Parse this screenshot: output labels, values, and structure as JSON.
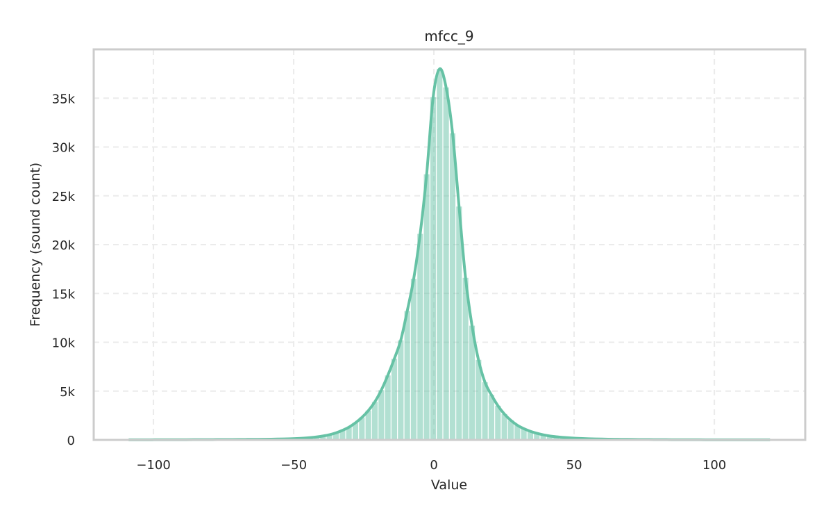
{
  "chart_data": {
    "type": "bar",
    "title": "mfcc_9",
    "xlabel": "Value",
    "ylabel": "Frequency (sound count)",
    "xlim": [
      -121.3,
      132.4
    ],
    "ylim": [
      0,
      40000
    ],
    "grid": true,
    "bin_range": [
      -110,
      121
    ],
    "x_ticks": [
      -100,
      -50,
      0,
      50,
      100
    ],
    "x_tick_labels": [
      "−100",
      "−50",
      "0",
      "50",
      "100"
    ],
    "y_ticks": [
      0,
      5000,
      10000,
      15000,
      20000,
      25000,
      30000,
      35000
    ],
    "y_tick_labels": [
      "0",
      "5k",
      "10k",
      "15k",
      "20k",
      "25k",
      "30k",
      "35k"
    ],
    "bar_color": "#66c2a5",
    "kde_color": "#66c2a5",
    "has_kde_line": true,
    "values": [
      10,
      10,
      12,
      12,
      14,
      15,
      16,
      18,
      20,
      22,
      24,
      26,
      28,
      30,
      33,
      36,
      40,
      44,
      48,
      52,
      54,
      62,
      72,
      85,
      100,
      120,
      145,
      180,
      230,
      300,
      400,
      530,
      720,
      980,
      1300,
      1750,
      2300,
      3000,
      3900,
      5100,
      6600,
      8300,
      10200,
      13200,
      16500,
      21100,
      27200,
      35100,
      38000,
      36100,
      31400,
      23900,
      16600,
      11700,
      8200,
      5900,
      4600,
      3500,
      2650,
      2000,
      1500,
      1150,
      880,
      680,
      520,
      400,
      320,
      260,
      210,
      170,
      140,
      118,
      100,
      86,
      74,
      64,
      56,
      49,
      43,
      38,
      34,
      30,
      27,
      24,
      21,
      19,
      17,
      15,
      14,
      13,
      12,
      11,
      10,
      10,
      9,
      9,
      8,
      8,
      8,
      7
    ]
  }
}
